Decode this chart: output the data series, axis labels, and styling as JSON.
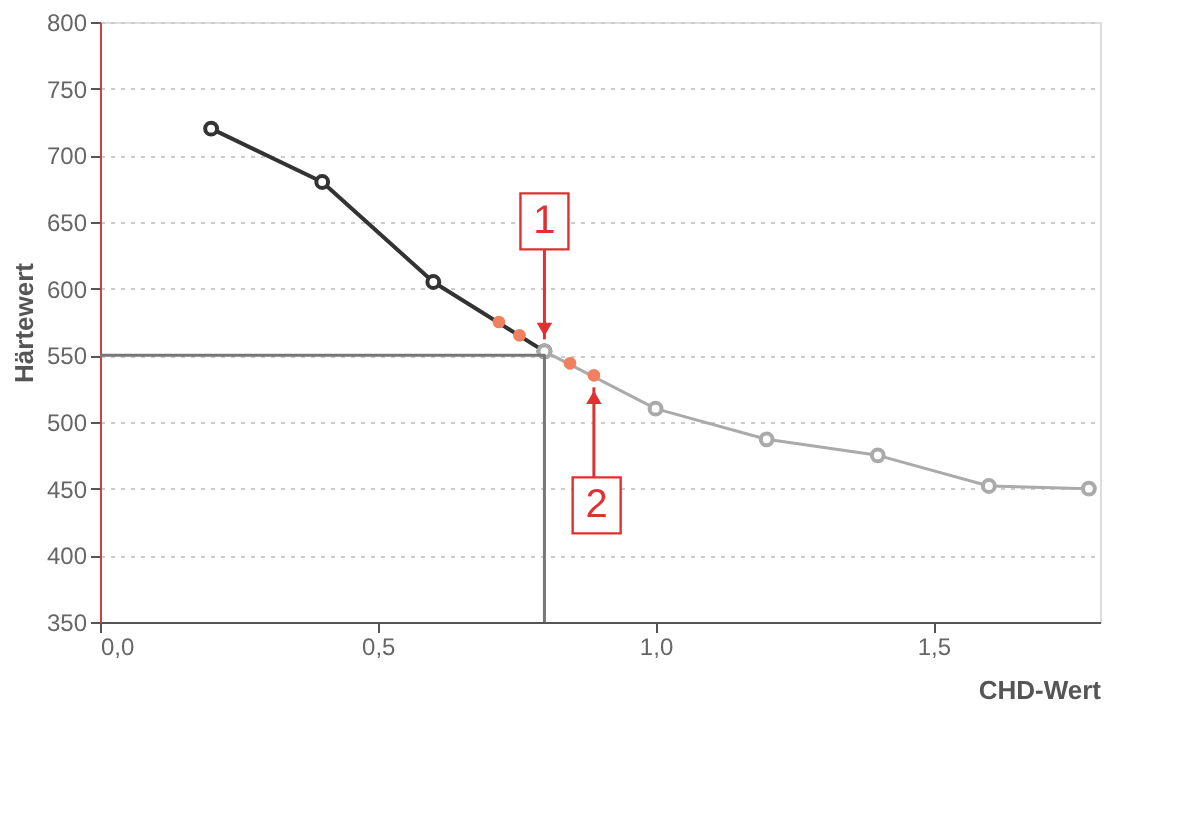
{
  "chart_data": {
    "type": "line",
    "xlabel": "CHD-Wert",
    "ylabel": "Härtewert",
    "series": [
      {
        "color": "#333333",
        "marker": "circle",
        "x": [
          0.2,
          0.4,
          0.6,
          0.8
        ],
        "values": [
          720,
          680,
          605,
          553
        ]
      },
      {
        "color": "#aaaaaa",
        "marker": "circle",
        "x": [
          0.8,
          1.0,
          1.2,
          1.4,
          1.6,
          1.78
        ],
        "values": [
          553,
          510,
          487,
          475,
          452,
          450
        ]
      },
      {
        "type": "scatter",
        "color": "#f08060",
        "marker": "circle",
        "x": [
          0.718,
          0.755,
          0.846,
          0.889
        ],
        "values": [
          575,
          565,
          544,
          535
        ]
      },
      {
        "color": "#777777",
        "marker": "none",
        "x": [
          0,
          0.8,
          0.8
        ],
        "values": [
          550,
          550,
          350
        ]
      }
    ],
    "annotations": [
      {
        "text": "1",
        "x": 0.8,
        "y": 553
      },
      {
        "text": "2",
        "x": 0.889,
        "y": 535
      }
    ],
    "xlim": [
      0,
      1.8
    ],
    "ylim": [
      350,
      800
    ],
    "xticks": [
      {
        "value": 0,
        "label": "0,0"
      },
      {
        "value": 0.5,
        "label": "0,5"
      },
      {
        "value": 1.0,
        "label": "1,0"
      },
      {
        "value": 1.5,
        "label": "1,5"
      }
    ],
    "yticks": [
      350,
      400,
      450,
      500,
      550,
      600,
      650,
      700,
      750,
      800
    ],
    "grid": "y"
  }
}
